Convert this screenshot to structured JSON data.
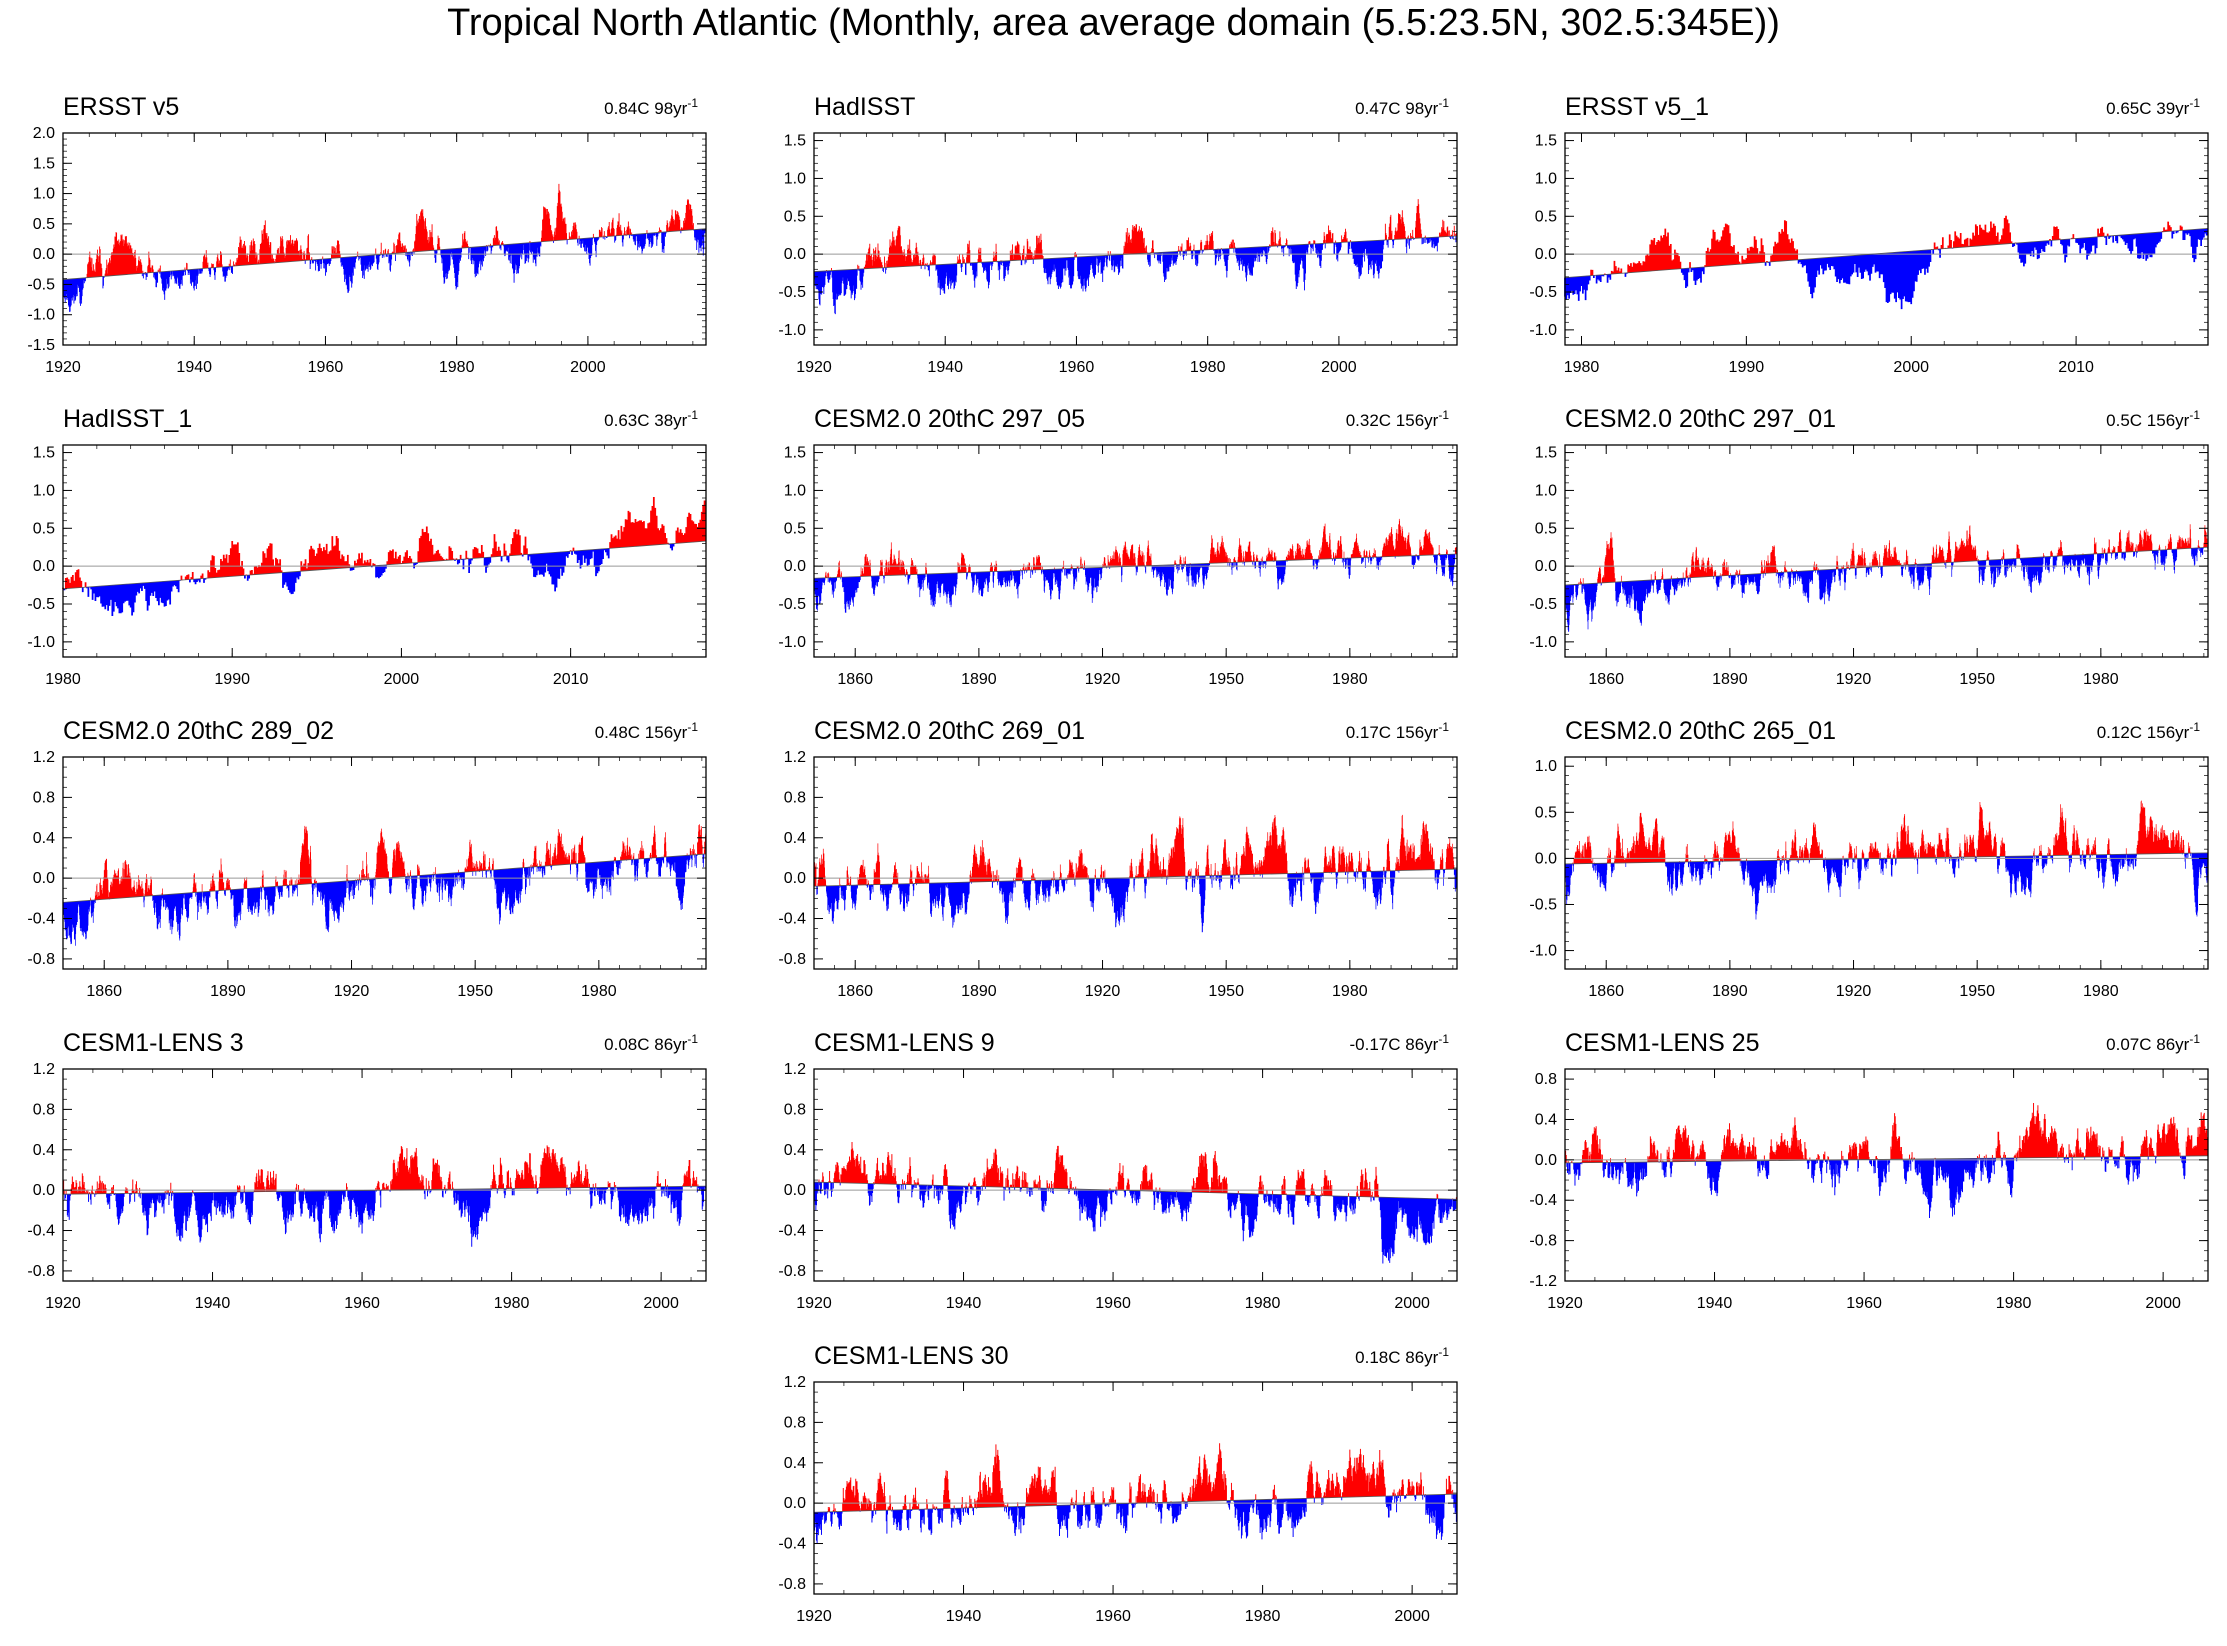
{
  "figure_title": "Tropical North Atlantic (Monthly, area average domain (5.5:23.5N, 302.5:345E))",
  "colors": {
    "positive": "#ff0000",
    "negative": "#0000ff",
    "zero_line": "#999999",
    "frame": "#000000"
  },
  "chart_data": [
    {
      "type": "bar",
      "title": "ERSST v5",
      "trend_value": "0.84C 98yr",
      "trend_exp": "-1",
      "x_range": [
        1920,
        2018
      ],
      "xticks": [
        1920,
        1940,
        1960,
        1980,
        2000
      ],
      "ylim": [
        -1.5,
        2.0
      ],
      "yticks": [
        "2.0",
        "1.5",
        "1.0",
        "0.5",
        "0.0",
        "-0.5",
        "-1.0",
        "-1.5"
      ],
      "trend_line": [
        -0.42,
        0.42
      ],
      "amplitude": 0.42,
      "seed": 11
    },
    {
      "type": "bar",
      "title": "HadISST",
      "trend_value": "0.47C 98yr",
      "trend_exp": "-1",
      "x_range": [
        1920,
        2018
      ],
      "xticks": [
        1920,
        1940,
        1960,
        1980,
        2000
      ],
      "ylim": [
        -1.2,
        1.6
      ],
      "yticks": [
        "1.5",
        "1.0",
        "0.5",
        "0.0",
        "-0.5",
        "-1.0"
      ],
      "trend_line": [
        -0.23,
        0.24
      ],
      "amplitude": 0.38,
      "seed": 23
    },
    {
      "type": "bar",
      "title": "ERSST v5_1",
      "trend_value": "0.65C 39yr",
      "trend_exp": "-1",
      "x_range": [
        1979,
        2018
      ],
      "xticks": [
        1980,
        1990,
        2000,
        2010
      ],
      "ylim": [
        -1.2,
        1.6
      ],
      "yticks": [
        "1.5",
        "1.0",
        "0.5",
        "0.0",
        "-0.5",
        "-1.0"
      ],
      "trend_line": [
        -0.31,
        0.34
      ],
      "amplitude": 0.38,
      "seed": 37
    },
    {
      "type": "bar",
      "title": "HadISST_1",
      "trend_value": "0.63C 38yr",
      "trend_exp": "-1",
      "x_range": [
        1980,
        2018
      ],
      "xticks": [
        1980,
        1990,
        2000,
        2010
      ],
      "ylim": [
        -1.2,
        1.6
      ],
      "yticks": [
        "1.5",
        "1.0",
        "0.5",
        "0.0",
        "-0.5",
        "-1.0"
      ],
      "trend_line": [
        -0.3,
        0.33
      ],
      "amplitude": 0.38,
      "seed": 41
    },
    {
      "type": "bar",
      "title": "CESM2.0 20thC 297_05",
      "trend_value": "0.32C 156yr",
      "trend_exp": "-1",
      "x_range": [
        1850,
        2006
      ],
      "xticks": [
        1860,
        1890,
        1920,
        1950,
        1980
      ],
      "ylim": [
        -1.2,
        1.6
      ],
      "yticks": [
        "1.5",
        "1.0",
        "0.5",
        "0.0",
        "-0.5",
        "-1.0"
      ],
      "trend_line": [
        -0.16,
        0.16
      ],
      "amplitude": 0.3,
      "seed": 53
    },
    {
      "type": "bar",
      "title": "CESM2.0 20thC 297_01",
      "trend_value": "0.5C 156yr",
      "trend_exp": "-1",
      "x_range": [
        1850,
        2006
      ],
      "xticks": [
        1860,
        1890,
        1920,
        1950,
        1980
      ],
      "ylim": [
        -1.2,
        1.6
      ],
      "yticks": [
        "1.5",
        "1.0",
        "0.5",
        "0.0",
        "-0.5",
        "-1.0"
      ],
      "trend_line": [
        -0.25,
        0.25
      ],
      "amplitude": 0.32,
      "seed": 67
    },
    {
      "type": "bar",
      "title": "CESM2.0 20thC 289_02",
      "trend_value": "0.48C 156yr",
      "trend_exp": "-1",
      "x_range": [
        1850,
        2006
      ],
      "xticks": [
        1860,
        1890,
        1920,
        1950,
        1980
      ],
      "ylim": [
        -0.9,
        1.2
      ],
      "yticks": [
        "1.2",
        "0.8",
        "0.4",
        "0.0",
        "-0.4",
        "-0.8"
      ],
      "trend_line": [
        -0.24,
        0.24
      ],
      "amplitude": 0.3,
      "seed": 79
    },
    {
      "type": "bar",
      "title": "CESM2.0 20thC 269_01",
      "trend_value": "0.17C 156yr",
      "trend_exp": "-1",
      "x_range": [
        1850,
        2006
      ],
      "xticks": [
        1860,
        1890,
        1920,
        1950,
        1980
      ],
      "ylim": [
        -0.9,
        1.2
      ],
      "yticks": [
        "1.2",
        "0.8",
        "0.4",
        "0.0",
        "-0.4",
        "-0.8"
      ],
      "trend_line": [
        -0.08,
        0.09
      ],
      "amplitude": 0.3,
      "seed": 83
    },
    {
      "type": "bar",
      "title": "CESM2.0 20thC 265_01",
      "trend_value": "0.12C 156yr",
      "trend_exp": "-1",
      "x_range": [
        1850,
        2006
      ],
      "xticks": [
        1860,
        1890,
        1920,
        1950,
        1980
      ],
      "ylim": [
        -1.2,
        1.1
      ],
      "yticks": [
        "1.0",
        "0.5",
        "0.0",
        "-0.5",
        "-1.0"
      ],
      "trend_line": [
        -0.06,
        0.06
      ],
      "amplitude": 0.3,
      "seed": 97
    },
    {
      "type": "bar",
      "title": "CESM1-LENS 3",
      "trend_value": "0.08C 86yr",
      "trend_exp": "-1",
      "x_range": [
        1920,
        2006
      ],
      "xticks": [
        1920,
        1940,
        1960,
        1980,
        2000
      ],
      "ylim": [
        -0.9,
        1.2
      ],
      "yticks": [
        "1.2",
        "0.8",
        "0.4",
        "0.0",
        "-0.4",
        "-0.8"
      ],
      "trend_line": [
        -0.04,
        0.04
      ],
      "amplitude": 0.34,
      "seed": 101
    },
    {
      "type": "bar",
      "title": "CESM1-LENS 9",
      "trend_value": "-0.17C 86yr",
      "trend_exp": "-1",
      "x_range": [
        1920,
        2006
      ],
      "xticks": [
        1920,
        1940,
        1960,
        1980,
        2000
      ],
      "ylim": [
        -0.9,
        1.2
      ],
      "yticks": [
        "1.2",
        "0.8",
        "0.4",
        "0.0",
        "-0.4",
        "-0.8"
      ],
      "trend_line": [
        0.08,
        -0.09
      ],
      "amplitude": 0.34,
      "seed": 113
    },
    {
      "type": "bar",
      "title": "CESM1-LENS 25",
      "trend_value": "0.07C 86yr",
      "trend_exp": "-1",
      "x_range": [
        1920,
        2006
      ],
      "xticks": [
        1920,
        1940,
        1960,
        1980,
        2000
      ],
      "ylim": [
        -1.2,
        0.9
      ],
      "yticks": [
        "0.8",
        "0.4",
        "0.0",
        "-0.4",
        "-0.8",
        "-1.2"
      ],
      "trend_line": [
        -0.03,
        0.04
      ],
      "amplitude": 0.34,
      "seed": 127
    },
    {
      "type": "bar",
      "title": "CESM1-LENS 30",
      "trend_value": "0.18C 86yr",
      "trend_exp": "-1",
      "x_range": [
        1920,
        2006
      ],
      "xticks": [
        1920,
        1940,
        1960,
        1980,
        2000
      ],
      "ylim": [
        -0.9,
        1.2
      ],
      "yticks": [
        "1.2",
        "0.8",
        "0.4",
        "0.0",
        "-0.4",
        "-0.8"
      ],
      "trend_line": [
        -0.09,
        0.09
      ],
      "amplitude": 0.36,
      "seed": 131
    }
  ]
}
